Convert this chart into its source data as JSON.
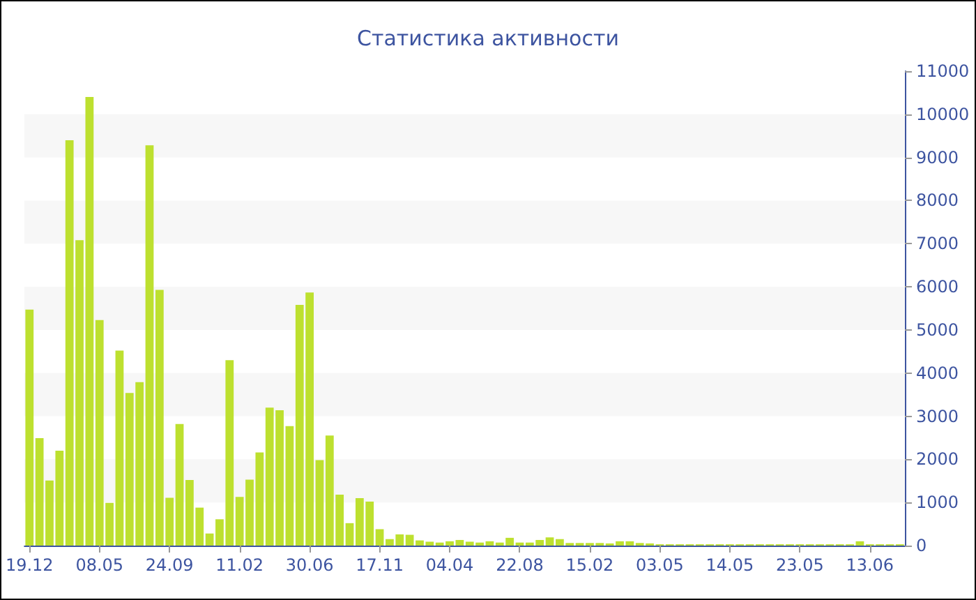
{
  "chart_data": {
    "type": "bar",
    "title": "Статистика активности",
    "categories": [
      "19.12",
      null,
      null,
      null,
      null,
      null,
      null,
      "08.05",
      null,
      null,
      null,
      null,
      null,
      null,
      "24.09",
      null,
      null,
      null,
      null,
      null,
      null,
      "11.02",
      null,
      null,
      null,
      null,
      null,
      null,
      "30.06",
      null,
      null,
      null,
      null,
      null,
      null,
      "17.11",
      null,
      null,
      null,
      null,
      null,
      null,
      "04.04",
      null,
      null,
      null,
      null,
      null,
      null,
      "22.08",
      null,
      null,
      null,
      null,
      null,
      null,
      "15.02",
      null,
      null,
      null,
      null,
      null,
      null,
      "03.05",
      null,
      null,
      null,
      null,
      null,
      null,
      "14.05",
      null,
      null,
      null,
      null,
      null,
      null,
      "23.05",
      null,
      null,
      null,
      null,
      null,
      null,
      "13.06",
      null,
      null,
      null
    ],
    "values": [
      5470,
      2490,
      1510,
      2200,
      9400,
      7080,
      10400,
      5230,
      990,
      4520,
      3540,
      3790,
      9280,
      5930,
      1110,
      2820,
      1520,
      880,
      280,
      610,
      4300,
      1130,
      1530,
      2160,
      3200,
      3140,
      2770,
      5580,
      5870,
      1980,
      2550,
      1180,
      520,
      1100,
      1020,
      380,
      150,
      260,
      250,
      120,
      90,
      70,
      100,
      130,
      90,
      70,
      100,
      70,
      180,
      70,
      70,
      130,
      190,
      150,
      60,
      60,
      60,
      60,
      50,
      100,
      100,
      60,
      50,
      30,
      30,
      30,
      30,
      30,
      30,
      30,
      30,
      30,
      30,
      30,
      30,
      30,
      30,
      30,
      30,
      30,
      30,
      30,
      30,
      100,
      30,
      30,
      30,
      30
    ],
    "color": "#bde02f",
    "ylim": [
      0,
      11000
    ],
    "yticks": [
      0,
      1000,
      2000,
      3000,
      4000,
      5000,
      6000,
      7000,
      8000,
      9000,
      10000,
      11000
    ],
    "bands": [
      {
        "axis": "y",
        "from": 1000,
        "to": 2000,
        "color": "#f7f7f7"
      },
      {
        "axis": "y",
        "from": 3000,
        "to": 4000,
        "color": "#f7f7f7"
      },
      {
        "axis": "y",
        "from": 5000,
        "to": 6000,
        "color": "#f7f7f7"
      },
      {
        "axis": "y",
        "from": 7000,
        "to": 8000,
        "color": "#f7f7f7"
      },
      {
        "axis": "y",
        "from": 9000,
        "to": 10000,
        "color": "#f7f7f7"
      }
    ]
  }
}
